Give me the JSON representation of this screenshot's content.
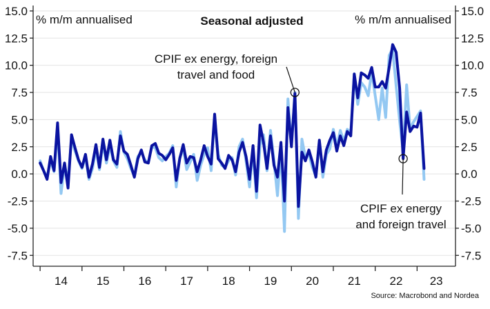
{
  "chart_data": {
    "type": "line",
    "title": "Seasonal adjusted",
    "ylabel_left": "% m/m annualised",
    "ylabel_right": "% m/m annualised",
    "source": "Source: Macrobond and Nordea",
    "ylim": [
      -8.5,
      15.5
    ],
    "yticks": [
      15,
      12.5,
      10,
      7.5,
      5,
      2.5,
      0,
      -2.5,
      -5,
      -7.5
    ],
    "ytick_labels": [
      "15.0",
      "12.5",
      "10.0",
      "7.5",
      "5.0",
      "2.5",
      "0.0",
      "-2.5",
      "-5.0",
      "-7.5"
    ],
    "x_start": "2014-01",
    "xlim": [
      "2013-11",
      "2023-12"
    ],
    "year_labels": [
      "14",
      "15",
      "16",
      "17",
      "18",
      "19",
      "20",
      "21",
      "22",
      "23"
    ],
    "grid": "horizontal",
    "series": [
      {
        "name": "CPIF ex energy, foreign travel and food",
        "color": "#93c8f2",
        "values": [
          1.2,
          0.3,
          -0.3,
          1.2,
          0.2,
          4.2,
          -1.8,
          0.8,
          -0.6,
          3.2,
          2.1,
          1.2,
          0.5,
          1.6,
          -0.5,
          0.5,
          2.3,
          0.4,
          2.8,
          1.0,
          2.6,
          1.2,
          0.6,
          3.9,
          2.0,
          1.4,
          0.5,
          -0.2,
          1.6,
          2.0,
          1.3,
          1.0,
          2.5,
          2.4,
          1.5,
          1.2,
          1.6,
          1.9,
          2.6,
          -1.2,
          1.5,
          2.3,
          0.4,
          1.1,
          1.8,
          -0.6,
          0.8,
          1.8,
          2.4,
          0.3,
          5.2,
          1.8,
          0.8,
          0.6,
          1.2,
          1.5,
          -0.1,
          2.5,
          3.2,
          1.2,
          -1.2,
          2.2,
          -2.2,
          2.6,
          3.6,
          0.3,
          4.0,
          1.2,
          -2.0,
          2.4,
          -5.3,
          6.9,
          2.6,
          7.5,
          -4.1,
          3.2,
          1.5,
          1.8,
          0.6,
          -0.2,
          3.0,
          -0.3,
          1.8,
          2.3,
          4.1,
          2.5,
          4.0,
          3.0,
          4.1,
          3.8,
          9.2,
          6.4,
          8.4,
          8.0,
          7.2,
          9.4,
          7.2,
          5.0,
          7.9,
          5.2,
          10.9,
          11.5,
          8.1,
          4.9,
          2.0,
          8.2,
          4.1,
          4.8,
          5.3,
          5.8,
          -0.5
        ]
      },
      {
        "name": "CPIF ex energy and foreign travel",
        "color": "#0a13a0",
        "values": [
          1.0,
          0.3,
          -0.5,
          1.6,
          0.3,
          4.7,
          -0.8,
          1.0,
          -1.3,
          3.6,
          2.4,
          1.3,
          0.6,
          1.8,
          -0.3,
          0.9,
          2.7,
          0.6,
          3.2,
          1.3,
          3.1,
          1.3,
          0.9,
          3.5,
          2.1,
          1.8,
          0.8,
          -0.3,
          1.4,
          2.2,
          1.1,
          1.0,
          2.6,
          2.8,
          1.9,
          1.7,
          1.3,
          1.8,
          2.4,
          -0.6,
          1.4,
          2.7,
          1.0,
          1.6,
          1.5,
          0.2,
          1.3,
          2.6,
          1.6,
          0.9,
          5.5,
          1.4,
          1.0,
          0.5,
          1.7,
          1.3,
          0.2,
          2.0,
          2.9,
          1.6,
          -0.5,
          2.6,
          -1.6,
          4.5,
          2.9,
          0.5,
          3.5,
          0.8,
          -0.3,
          2.9,
          -2.5,
          6.1,
          2.5,
          7.4,
          -3.0,
          2.0,
          1.2,
          2.2,
          1.1,
          -0.3,
          3.1,
          0.2,
          2.2,
          3.1,
          3.8,
          2.1,
          3.5,
          2.6,
          3.9,
          3.5,
          9.2,
          7.0,
          9.3,
          9.1,
          8.8,
          9.8,
          8.0,
          8.0,
          8.5,
          7.9,
          9.8,
          11.9,
          11.2,
          7.9,
          1.4,
          5.7,
          3.9,
          4.4,
          4.3,
          5.6,
          0.5
        ]
      }
    ],
    "annotations": [
      {
        "text_line1": "CPIF ex energy, foreign",
        "text_line2": "travel and food",
        "series_index": 0,
        "point_index": 73
      },
      {
        "text_line1": "CPIF ex energy",
        "text_line2": "and foreign travel",
        "series_index": 1,
        "point_index": 104
      }
    ]
  }
}
